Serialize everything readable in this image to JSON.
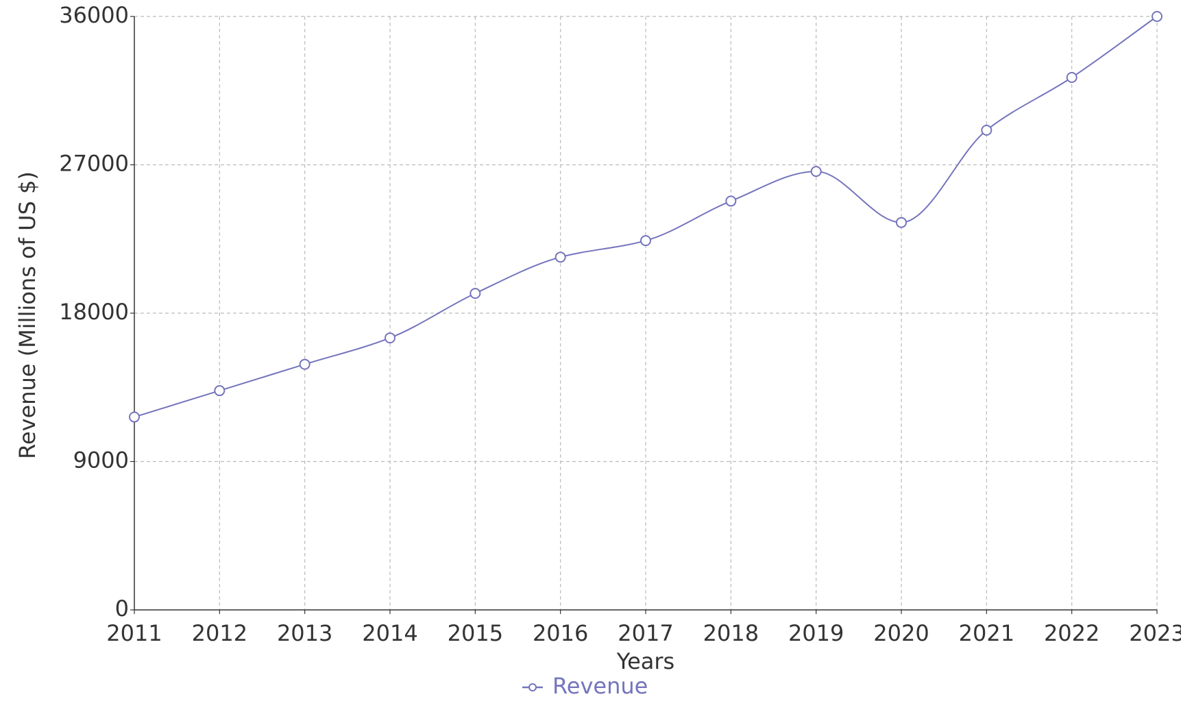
{
  "chart_data": {
    "type": "line",
    "categories": [
      "2011",
      "2012",
      "2013",
      "2014",
      "2015",
      "2016",
      "2017",
      "2018",
      "2019",
      "2020",
      "2021",
      "2022",
      "2023"
    ],
    "series": [
      {
        "name": "Revenue",
        "color": "#7474bd",
        "values": [
          11700,
          13300,
          14900,
          16500,
          19200,
          21400,
          22400,
          24800,
          26600,
          23500,
          29100,
          32300,
          36000
        ]
      }
    ],
    "ylim": [
      0,
      36000
    ],
    "yticks": [
      0,
      9000,
      18000,
      27000,
      36000
    ],
    "x_label": "Years",
    "y_label": "Revenue (Millions of US $)",
    "grid": true
  }
}
